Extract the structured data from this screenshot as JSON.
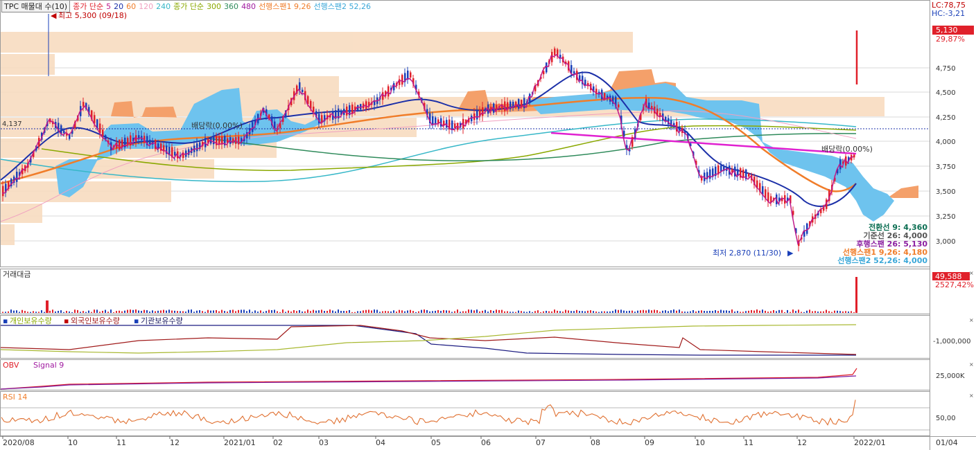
{
  "legend": {
    "stock": "TPC 매물대 수(10)",
    "ma_label": "종가 단순",
    "ma_short": [
      "5",
      "20",
      "60",
      "120",
      "240"
    ],
    "ma_long_label": "종가 단순",
    "ma_long": [
      "300",
      "360",
      "480"
    ],
    "span1": "선행스팬1 9,26",
    "span2": "선행스팬2 52,26"
  },
  "annotations": {
    "high": "최고 5,300 (09/18)",
    "low": "최저 2,870 (11/30)",
    "div1": "배당락(0.00%)",
    "div2": "배당락(0.00%)",
    "ref_price": "4,137"
  },
  "ichimoku": [
    {
      "label": "전환선 9: 4,360",
      "color": "#0b6e52"
    },
    {
      "label": "기준선 26: 4,000",
      "color": "#555555"
    },
    {
      "label": "후행스팬 26: 5,130",
      "color": "#8b1fa0"
    },
    {
      "label": "선행스팬1 9,26: 4,180",
      "color": "#f07d2a"
    },
    {
      "label": "선행스팬2 52,26: 4,000",
      "color": "#39a7d8"
    }
  ],
  "price_axis": {
    "lc": "LC:78,75",
    "hc": "HC:-3,21",
    "ticks": [
      "4,750",
      "4,500",
      "4,250",
      "4,000",
      "3,750",
      "3,500",
      "3,250",
      "3,000"
    ],
    "current": "5,130",
    "current_pct": "29,87%"
  },
  "volume": {
    "title": "거래대금",
    "value": "49,588",
    "pct": "2527,42%"
  },
  "holdings": {
    "title_indiv": "개인보유수량",
    "title_foreign": "외국인보유수량",
    "title_inst": "기관보유수량",
    "tick": "-1,000,000"
  },
  "obv": {
    "title": "OBV",
    "signal": "Signal 9",
    "tick": "25,000K"
  },
  "rsi": {
    "title": "RSI 14",
    "tick": "50,00"
  },
  "date_axis": [
    "2020/08",
    "10",
    "11",
    "12",
    "2021/01",
    "02",
    "03",
    "04",
    "05",
    "06",
    "07",
    "08",
    "09",
    "10",
    "11",
    "12",
    "2022/01"
  ],
  "date_right": "01/04",
  "colors": {
    "up": "#e0202a",
    "down": "#1a3fb8",
    "cloud_orange": "#f4a06a",
    "cloud_blue": "#6ec3ee",
    "volume_profile": "#f8dcc0"
  }
}
